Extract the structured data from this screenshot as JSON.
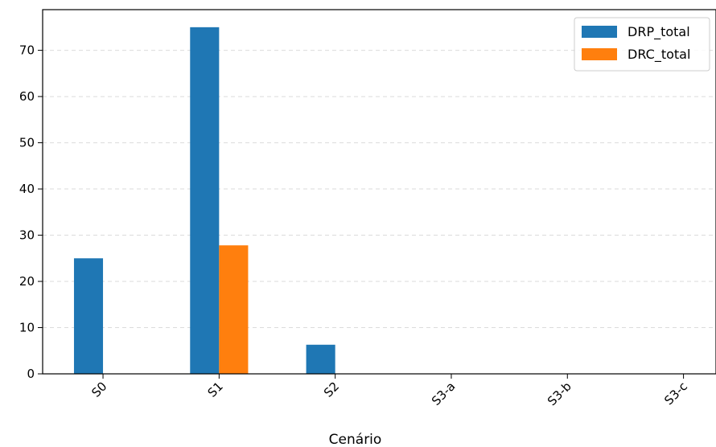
{
  "chart_data": {
    "type": "bar",
    "title": "",
    "xlabel": "Cenário",
    "ylabel": "",
    "categories": [
      "S0",
      "S1",
      "S2",
      "S3-a",
      "S3-b",
      "S3-c"
    ],
    "series": [
      {
        "name": "DRP_total",
        "color": "#1f77b4",
        "values": [
          25,
          75,
          6.3,
          0,
          0,
          0
        ]
      },
      {
        "name": "DRC_total",
        "color": "#ff7f0e",
        "values": [
          0,
          27.8,
          0,
          0,
          0,
          0
        ]
      }
    ],
    "ylim": [
      0,
      78.8
    ],
    "yticks": [
      0,
      10,
      20,
      30,
      40,
      50,
      60,
      70
    ],
    "grid": "y-dashed",
    "legend_position": "top-right"
  }
}
